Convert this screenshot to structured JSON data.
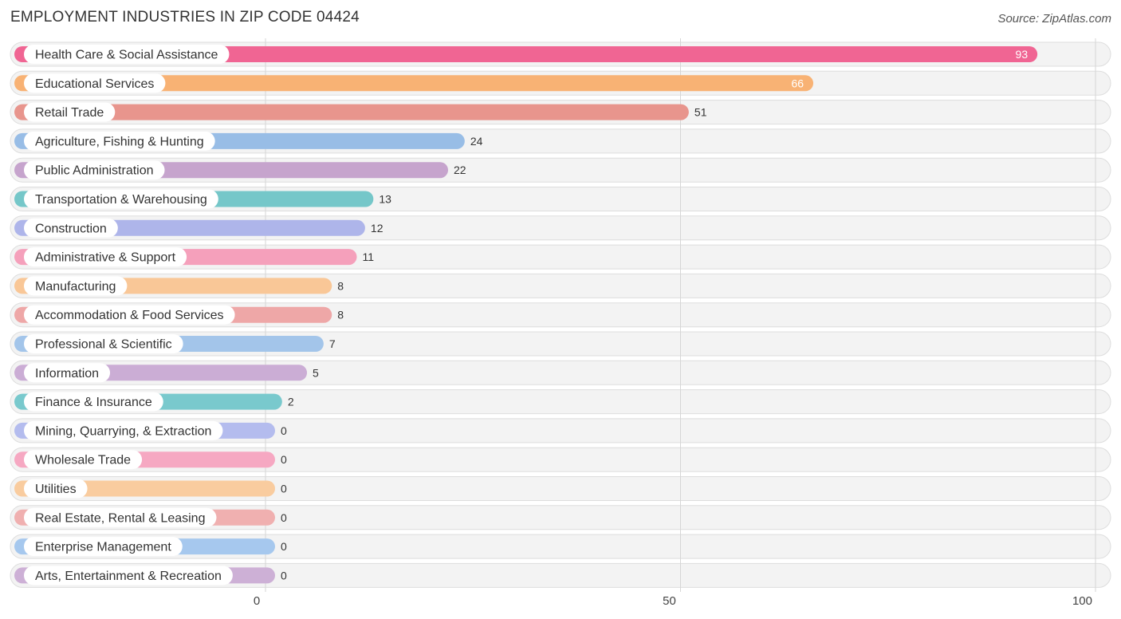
{
  "chart_data": {
    "type": "bar",
    "orientation": "horizontal",
    "title": "EMPLOYMENT INDUSTRIES IN ZIP CODE 04424",
    "source": "Source: ZipAtlas.com",
    "xlim": [
      0,
      100
    ],
    "xticks": [
      0,
      50,
      100
    ],
    "categories": [
      "Health Care & Social Assistance",
      "Educational Services",
      "Retail Trade",
      "Agriculture, Fishing & Hunting",
      "Public Administration",
      "Transportation & Warehousing",
      "Construction",
      "Administrative & Support",
      "Manufacturing",
      "Accommodation & Food Services",
      "Professional & Scientific",
      "Information",
      "Finance & Insurance",
      "Mining, Quarrying, & Extraction",
      "Wholesale Trade",
      "Utilities",
      "Real Estate, Rental & Leasing",
      "Enterprise Management",
      "Arts, Entertainment & Recreation"
    ],
    "values": [
      93,
      66,
      51,
      24,
      22,
      13,
      12,
      11,
      8,
      8,
      7,
      5,
      2,
      0,
      0,
      0,
      0,
      0,
      0
    ],
    "colors": [
      "#f06593",
      "#f8b274",
      "#e8958d",
      "#98bde6",
      "#c6a4cd",
      "#75c7c9",
      "#aeb5ea",
      "#f5a0bb",
      "#f9c797",
      "#eea7a7",
      "#a3c5ea",
      "#cbadd5",
      "#79c9cd",
      "#b4bcee",
      "#f6a8c2",
      "#f9cc9f",
      "#f0b0b0",
      "#a6c8ee",
      "#cdb0d6"
    ]
  }
}
